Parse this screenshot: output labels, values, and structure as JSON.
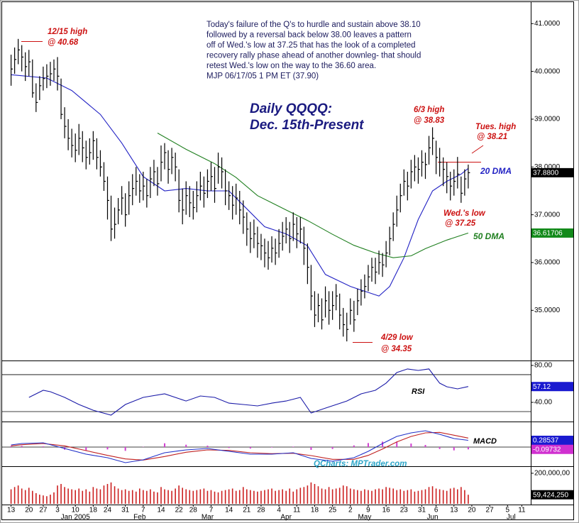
{
  "chart_data": [
    {
      "type": "ohlc",
      "title": "Daily QQQQ:",
      "subtitle": "Dec. 15th-Present",
      "color": "#000000",
      "commentary": [
        "Today's failure of the Q's to hurdle and sustain above 38.10",
        "followed by a reversal back below 38.00 leaves a pattern",
        "off of Wed.'s low at 37.25 that has the look of a completed",
        "recovery rally phase ahead of another downleg- that should",
        "retest Wed.'s low on the way to the 36.60 area.",
        "MJP 06/17/05  1 PM ET (37.90)"
      ],
      "annotations": [
        [
          "12/15 high",
          "@ 40.68"
        ],
        [
          "6/3 high",
          "@ 38.83"
        ],
        [
          "Tues. high",
          "@ 38.21"
        ],
        [
          "Wed.'s low",
          "@ 37.25"
        ],
        [
          "4/29 low",
          "@ 34.35"
        ]
      ],
      "xlim": [
        -2.5,
        145.5
      ],
      "ylim": [
        33.95,
        41.42
      ],
      "yticks": [
        {
          "value": 35,
          "label": "35.0000"
        },
        {
          "value": 36,
          "label": "36.0000"
        },
        {
          "value": 37,
          "label": "37.0000"
        },
        {
          "value": 38,
          "label": "38.0000"
        },
        {
          "value": 39,
          "label": "39.0000"
        },
        {
          "value": 40,
          "label": "40.0000"
        },
        {
          "value": 41,
          "label": "41.0000"
        }
      ],
      "high": [
        40.35,
        40.5,
        40.68,
        40.55,
        40.4,
        40.45,
        40.25,
        39.75,
        39.9,
        40.1,
        40.15,
        40.2,
        40.25,
        40.3,
        39.85,
        39.25,
        39.0,
        38.8,
        38.7,
        38.9,
        38.75,
        38.55,
        38.6,
        38.75,
        38.6,
        38.35,
        38.1,
        37.8,
        37.4,
        37.15,
        37.35,
        37.6,
        37.45,
        37.7,
        37.85,
        38.0,
        37.85,
        37.9,
        37.75,
        38.0,
        38.15,
        38.0,
        38.45,
        38.5,
        38.35,
        38.4,
        38.3,
        37.95,
        37.55,
        37.7,
        37.6,
        37.5,
        37.7,
        37.9,
        37.8,
        37.95,
        38.1,
        38.0,
        38.3,
        38.2,
        37.95,
        37.7,
        37.6,
        37.65,
        37.5,
        37.3,
        37.05,
        36.85,
        36.9,
        36.75,
        36.6,
        36.5,
        36.45,
        36.55,
        36.5,
        36.7,
        36.85,
        36.95,
        36.85,
        37.05,
        36.95,
        36.95,
        36.75,
        36.4,
        35.95,
        35.4,
        35.35,
        35.25,
        35.5,
        35.4,
        35.4,
        35.55,
        35.35,
        35.05,
        34.95,
        35.25,
        35.2,
        35.45,
        35.65,
        35.75,
        35.95,
        36.1,
        36.1,
        36.25,
        36.2,
        36.45,
        36.75,
        37.05,
        37.4,
        37.65,
        37.95,
        37.9,
        38.15,
        38.25,
        38.2,
        38.35,
        38.3,
        38.65,
        38.83,
        38.55,
        38.4,
        38.2,
        38.1,
        37.9,
        37.95,
        38.21,
        37.8,
        37.95,
        38.05
      ],
      "low": [
        39.7,
        39.95,
        40.15,
        40.0,
        39.8,
        39.9,
        39.45,
        39.15,
        39.4,
        39.6,
        39.65,
        39.7,
        39.8,
        39.6,
        39.0,
        38.6,
        38.35,
        38.2,
        38.1,
        38.25,
        38.1,
        37.95,
        38.05,
        38.15,
        37.95,
        37.8,
        37.5,
        36.9,
        36.45,
        36.5,
        36.8,
        37.0,
        36.75,
        37.0,
        37.2,
        37.4,
        37.25,
        37.3,
        37.15,
        37.35,
        37.6,
        37.4,
        37.7,
        37.95,
        37.65,
        37.85,
        37.7,
        37.05,
        36.8,
        37.0,
        36.95,
        36.9,
        37.05,
        37.3,
        37.15,
        37.35,
        37.5,
        37.25,
        37.65,
        37.55,
        37.2,
        37.1,
        36.9,
        37.0,
        36.8,
        36.6,
        36.35,
        36.2,
        36.3,
        36.1,
        36.05,
        35.9,
        35.85,
        36.0,
        35.95,
        36.1,
        36.25,
        36.4,
        36.2,
        36.45,
        36.3,
        36.4,
        35.95,
        35.55,
        35.0,
        34.65,
        34.75,
        34.6,
        34.85,
        34.7,
        34.8,
        35.0,
        34.6,
        34.45,
        34.35,
        34.7,
        34.55,
        34.9,
        35.1,
        35.25,
        35.4,
        35.6,
        35.55,
        35.75,
        35.7,
        35.9,
        36.15,
        36.45,
        36.75,
        37.05,
        37.4,
        37.3,
        37.55,
        37.7,
        37.65,
        37.8,
        37.75,
        38.05,
        38.25,
        37.85,
        37.8,
        37.6,
        37.45,
        37.3,
        37.4,
        37.55,
        37.25,
        37.4,
        37.55
      ],
      "close": [
        40.05,
        40.25,
        40.45,
        40.3,
        40.1,
        40.2,
        39.55,
        39.35,
        39.7,
        39.85,
        39.9,
        39.95,
        40.05,
        39.9,
        39.1,
        38.85,
        38.6,
        38.45,
        38.35,
        38.6,
        38.4,
        38.2,
        38.3,
        38.55,
        38.2,
        38.0,
        37.7,
        37.3,
        36.7,
        36.8,
        37.1,
        37.35,
        37.0,
        37.4,
        37.55,
        37.7,
        37.5,
        37.6,
        37.4,
        37.75,
        37.9,
        37.65,
        38.1,
        38.3,
        37.95,
        38.2,
        38.0,
        37.3,
        37.1,
        37.4,
        37.25,
        37.15,
        37.4,
        37.6,
        37.45,
        37.7,
        37.8,
        37.55,
        38.0,
        37.9,
        37.5,
        37.4,
        37.2,
        37.35,
        37.1,
        36.95,
        36.7,
        36.5,
        36.6,
        36.4,
        36.35,
        36.2,
        36.1,
        36.3,
        36.2,
        36.4,
        36.55,
        36.7,
        36.5,
        36.8,
        36.6,
        36.7,
        36.3,
        35.9,
        35.3,
        34.9,
        35.1,
        34.8,
        35.2,
        35.0,
        35.1,
        35.3,
        34.9,
        34.7,
        34.6,
        35.0,
        34.8,
        35.2,
        35.4,
        35.5,
        35.7,
        35.9,
        35.8,
        36.0,
        35.95,
        36.2,
        36.5,
        36.8,
        37.1,
        37.4,
        37.7,
        37.6,
        37.9,
        38.0,
        37.95,
        38.1,
        38.05,
        38.4,
        38.6,
        38.2,
        38.1,
        37.95,
        37.8,
        37.6,
        37.7,
        37.85,
        37.45,
        37.75,
        37.88
      ],
      "lines": [
        {
          "name": "20 DMA",
          "color": "#2222c4",
          "x": [
            0,
            10,
            17,
            25,
            31,
            37,
            43,
            49,
            55,
            61,
            65,
            71,
            77,
            83,
            88,
            95,
            99,
            103,
            106,
            110,
            114,
            118,
            122,
            126,
            128
          ],
          "values": [
            39.93,
            39.86,
            39.6,
            39.1,
            38.5,
            37.8,
            37.5,
            37.55,
            37.5,
            37.5,
            37.2,
            36.75,
            36.6,
            36.35,
            35.75,
            35.5,
            35.4,
            35.3,
            35.5,
            36.1,
            36.9,
            37.5,
            37.7,
            37.85,
            37.97
          ]
        },
        {
          "name": "50 DMA",
          "color": "#1f7f1f",
          "x": [
            41,
            49,
            57,
            63,
            69,
            77,
            83,
            90,
            96,
            102,
            107,
            112,
            116,
            122,
            128
          ],
          "values": [
            38.71,
            38.37,
            38.07,
            37.78,
            37.4,
            37.1,
            36.88,
            36.59,
            36.36,
            36.2,
            36.1,
            36.14,
            36.29,
            36.47,
            36.61706
          ]
        }
      ],
      "tags": [
        {
          "value": 37.88,
          "label": "37.8800",
          "color": "#000000"
        },
        {
          "value": 36.61706,
          "label": "36.61706",
          "color": "#128a1a"
        }
      ]
    },
    {
      "type": "line",
      "title": "RSI",
      "xlim": [
        -2.5,
        145.5
      ],
      "ylim": [
        20.8,
        83.8
      ],
      "yticks": [
        {
          "value": 80,
          "label": "80.00"
        },
        {
          "value": 40,
          "label": "40.00"
        }
      ],
      "hlines": [
        70,
        30
      ],
      "series": [
        {
          "color": "#1a1aa8",
          "x": [
            5,
            9,
            11,
            15,
            19,
            23,
            28,
            32,
            37,
            43,
            49,
            53,
            57,
            61,
            65,
            69,
            73,
            77,
            81,
            84,
            88,
            94,
            98,
            102,
            105,
            108,
            111,
            114,
            117,
            120,
            122,
            125,
            128
          ],
          "values": [
            45.4,
            53.1,
            51.5,
            45.4,
            37.7,
            31.5,
            26.2,
            37.7,
            45.4,
            49.2,
            41.5,
            46.9,
            45.4,
            39.2,
            37.7,
            36.2,
            39.2,
            41.5,
            45.4,
            28.5,
            33.8,
            41.5,
            49.2,
            53.1,
            60.8,
            72.3,
            76.2,
            74.6,
            76.2,
            60.8,
            56.9,
            54.6,
            57.12
          ]
        }
      ],
      "tags": [
        {
          "value": 57.12,
          "color": "#1a1ad0"
        }
      ]
    },
    {
      "type": "line",
      "title": "MACD",
      "credit": "QCharts: MPTrader.com",
      "xlim": [
        -2.5,
        145.5
      ],
      "ylim": [
        -0.75,
        0.99
      ],
      "hlines": [
        0
      ],
      "series": [
        {
          "type": "bar",
          "color": "#d040d0",
          "x": [
            0,
            3,
            9,
            15,
            21,
            27,
            32,
            37,
            43,
            49,
            55,
            61,
            67,
            73,
            79,
            84,
            90,
            96,
            100,
            104,
            108,
            112,
            116,
            120,
            124,
            128
          ],
          "values": [
            0.04,
            0.05,
            0.03,
            -0.11,
            -0.15,
            -0.1,
            -0.16,
            0.01,
            0.16,
            0.1,
            0.06,
            -0.04,
            -0.06,
            -0.02,
            0.02,
            -0.12,
            -0.08,
            0.07,
            0.17,
            0.23,
            0.23,
            0.15,
            0.09,
            -0.08,
            -0.14,
            -0.09732
          ]
        },
        {
          "color": "#c02020",
          "x": [
            0,
            3,
            9,
            15,
            21,
            27,
            32,
            37,
            43,
            49,
            55,
            61,
            67,
            73,
            79,
            84,
            90,
            96,
            100,
            104,
            108,
            112,
            116,
            120,
            124,
            128
          ],
          "values": [
            0.05,
            0.1,
            0.15,
            0.05,
            -0.15,
            -0.35,
            -0.5,
            -0.55,
            -0.4,
            -0.22,
            -0.12,
            -0.14,
            -0.24,
            -0.28,
            -0.26,
            -0.36,
            -0.52,
            -0.52,
            -0.35,
            -0.08,
            0.22,
            0.45,
            0.6,
            0.62,
            0.5,
            0.38
          ]
        },
        {
          "color": "#2030c8",
          "x": [
            0,
            3,
            9,
            15,
            21,
            27,
            32,
            37,
            43,
            49,
            55,
            61,
            67,
            73,
            79,
            84,
            90,
            96,
            100,
            104,
            108,
            112,
            116,
            120,
            124,
            128
          ],
          "values": [
            0.09,
            0.15,
            0.18,
            -0.06,
            -0.3,
            -0.45,
            -0.66,
            -0.54,
            -0.24,
            -0.12,
            -0.06,
            -0.18,
            -0.3,
            -0.3,
            -0.24,
            -0.48,
            -0.6,
            -0.45,
            -0.18,
            0.15,
            0.45,
            0.6,
            0.69,
            0.54,
            0.36,
            0.28537
          ]
        }
      ],
      "tags": [
        {
          "value": 0.28537,
          "color": "#1a1ad0"
        },
        {
          "value": -0.09732,
          "color": "#d030d0"
        }
      ]
    },
    {
      "type": "bar",
      "color": "#cc2020",
      "xlim": [
        -2.5,
        145.5
      ],
      "ylim": [
        0,
        232000000
      ],
      "yticks": [
        {
          "value": 200000000,
          "label": "200,000,00"
        }
      ],
      "values": [
        95000000,
        110000000,
        120000000,
        100000000,
        90000000,
        105000000,
        85000000,
        70000000,
        60000000,
        55000000,
        50000000,
        60000000,
        75000000,
        120000000,
        130000000,
        110000000,
        100000000,
        95000000,
        90000000,
        100000000,
        85000000,
        95000000,
        80000000,
        110000000,
        100000000,
        95000000,
        120000000,
        130000000,
        140000000,
        115000000,
        100000000,
        90000000,
        95000000,
        85000000,
        90000000,
        80000000,
        100000000,
        90000000,
        85000000,
        95000000,
        80000000,
        75000000,
        110000000,
        95000000,
        90000000,
        85000000,
        100000000,
        120000000,
        105000000,
        95000000,
        90000000,
        85000000,
        90000000,
        95000000,
        100000000,
        85000000,
        90000000,
        80000000,
        75000000,
        85000000,
        90000000,
        95000000,
        100000000,
        85000000,
        90000000,
        110000000,
        95000000,
        90000000,
        85000000,
        80000000,
        85000000,
        90000000,
        95000000,
        100000000,
        85000000,
        90000000,
        95000000,
        85000000,
        100000000,
        80000000,
        95000000,
        105000000,
        110000000,
        120000000,
        140000000,
        130000000,
        115000000,
        100000000,
        95000000,
        110000000,
        95000000,
        100000000,
        105000000,
        120000000,
        115000000,
        100000000,
        95000000,
        90000000,
        85000000,
        95000000,
        90000000,
        85000000,
        95000000,
        100000000,
        95000000,
        110000000,
        105000000,
        100000000,
        90000000,
        95000000,
        85000000,
        90000000,
        95000000,
        80000000,
        85000000,
        90000000,
        95000000,
        110000000,
        115000000,
        100000000,
        95000000,
        90000000,
        85000000,
        100000000,
        105000000,
        95000000,
        110000000,
        90000000,
        59424250
      ],
      "tags": [
        {
          "value": 59424250,
          "label": "59,424,250",
          "color": "#000000"
        }
      ],
      "xticks": [
        {
          "value": 0,
          "label": "13"
        },
        {
          "value": 5,
          "label": "20"
        },
        {
          "value": 9,
          "label": "27"
        },
        {
          "value": 13,
          "label": "3"
        },
        {
          "value": 18,
          "label": "10"
        },
        {
          "value": 23,
          "label": "18"
        },
        {
          "value": 27,
          "label": "24"
        },
        {
          "value": 32,
          "label": "31"
        },
        {
          "value": 37,
          "label": "7"
        },
        {
          "value": 42,
          "label": "14"
        },
        {
          "value": 47,
          "label": "22"
        },
        {
          "value": 51,
          "label": "28"
        },
        {
          "value": 56,
          "label": "7"
        },
        {
          "value": 61,
          "label": "14"
        },
        {
          "value": 66,
          "label": "21"
        },
        {
          "value": 70,
          "label": "28"
        },
        {
          "value": 75,
          "label": "4"
        },
        {
          "value": 80,
          "label": "11"
        },
        {
          "value": 85,
          "label": "18"
        },
        {
          "value": 90,
          "label": "25"
        },
        {
          "value": 95,
          "label": "2"
        },
        {
          "value": 100,
          "label": "9"
        },
        {
          "value": 105,
          "label": "16"
        },
        {
          "value": 110,
          "label": "23"
        },
        {
          "value": 115,
          "label": "31"
        },
        {
          "value": 119,
          "label": "6"
        },
        {
          "value": 124,
          "label": "13"
        },
        {
          "value": 129,
          "label": "20"
        },
        {
          "value": 134,
          "label": "27"
        },
        {
          "value": 139,
          "label": "5"
        },
        {
          "value": 143,
          "label": "11"
        }
      ],
      "months": [
        {
          "value": 18,
          "label": "Jan 2005"
        },
        {
          "value": 36,
          "label": "Feb"
        },
        {
          "value": 55,
          "label": "Mar"
        },
        {
          "value": 77,
          "label": "Apr"
        },
        {
          "value": 99,
          "label": "May"
        },
        {
          "value": 118,
          "label": "Jun"
        },
        {
          "value": 140,
          "label": "Jul"
        }
      ]
    }
  ]
}
